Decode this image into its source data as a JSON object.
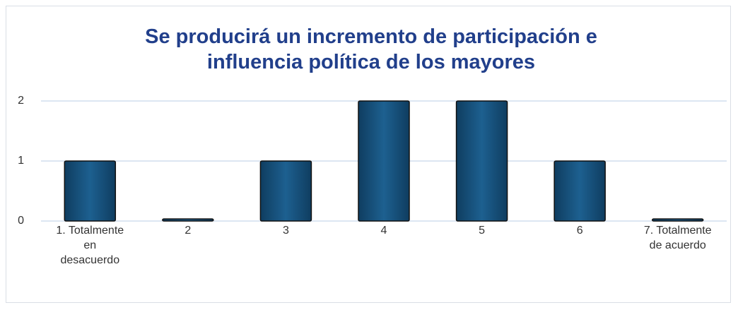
{
  "chart_data": {
    "type": "bar",
    "title": "Se producirá un incremento de participación e influencia política de los mayores",
    "categories": [
      "1. Totalmente en desacuerdo",
      "2",
      "3",
      "4",
      "5",
      "6",
      "7. Totalmente de acuerdo"
    ],
    "values": [
      1,
      0,
      1,
      2,
      2,
      1,
      0
    ],
    "color": "#1a5582",
    "ylim": [
      0,
      2
    ],
    "yticks": [
      0,
      1,
      2
    ],
    "grid": true
  }
}
